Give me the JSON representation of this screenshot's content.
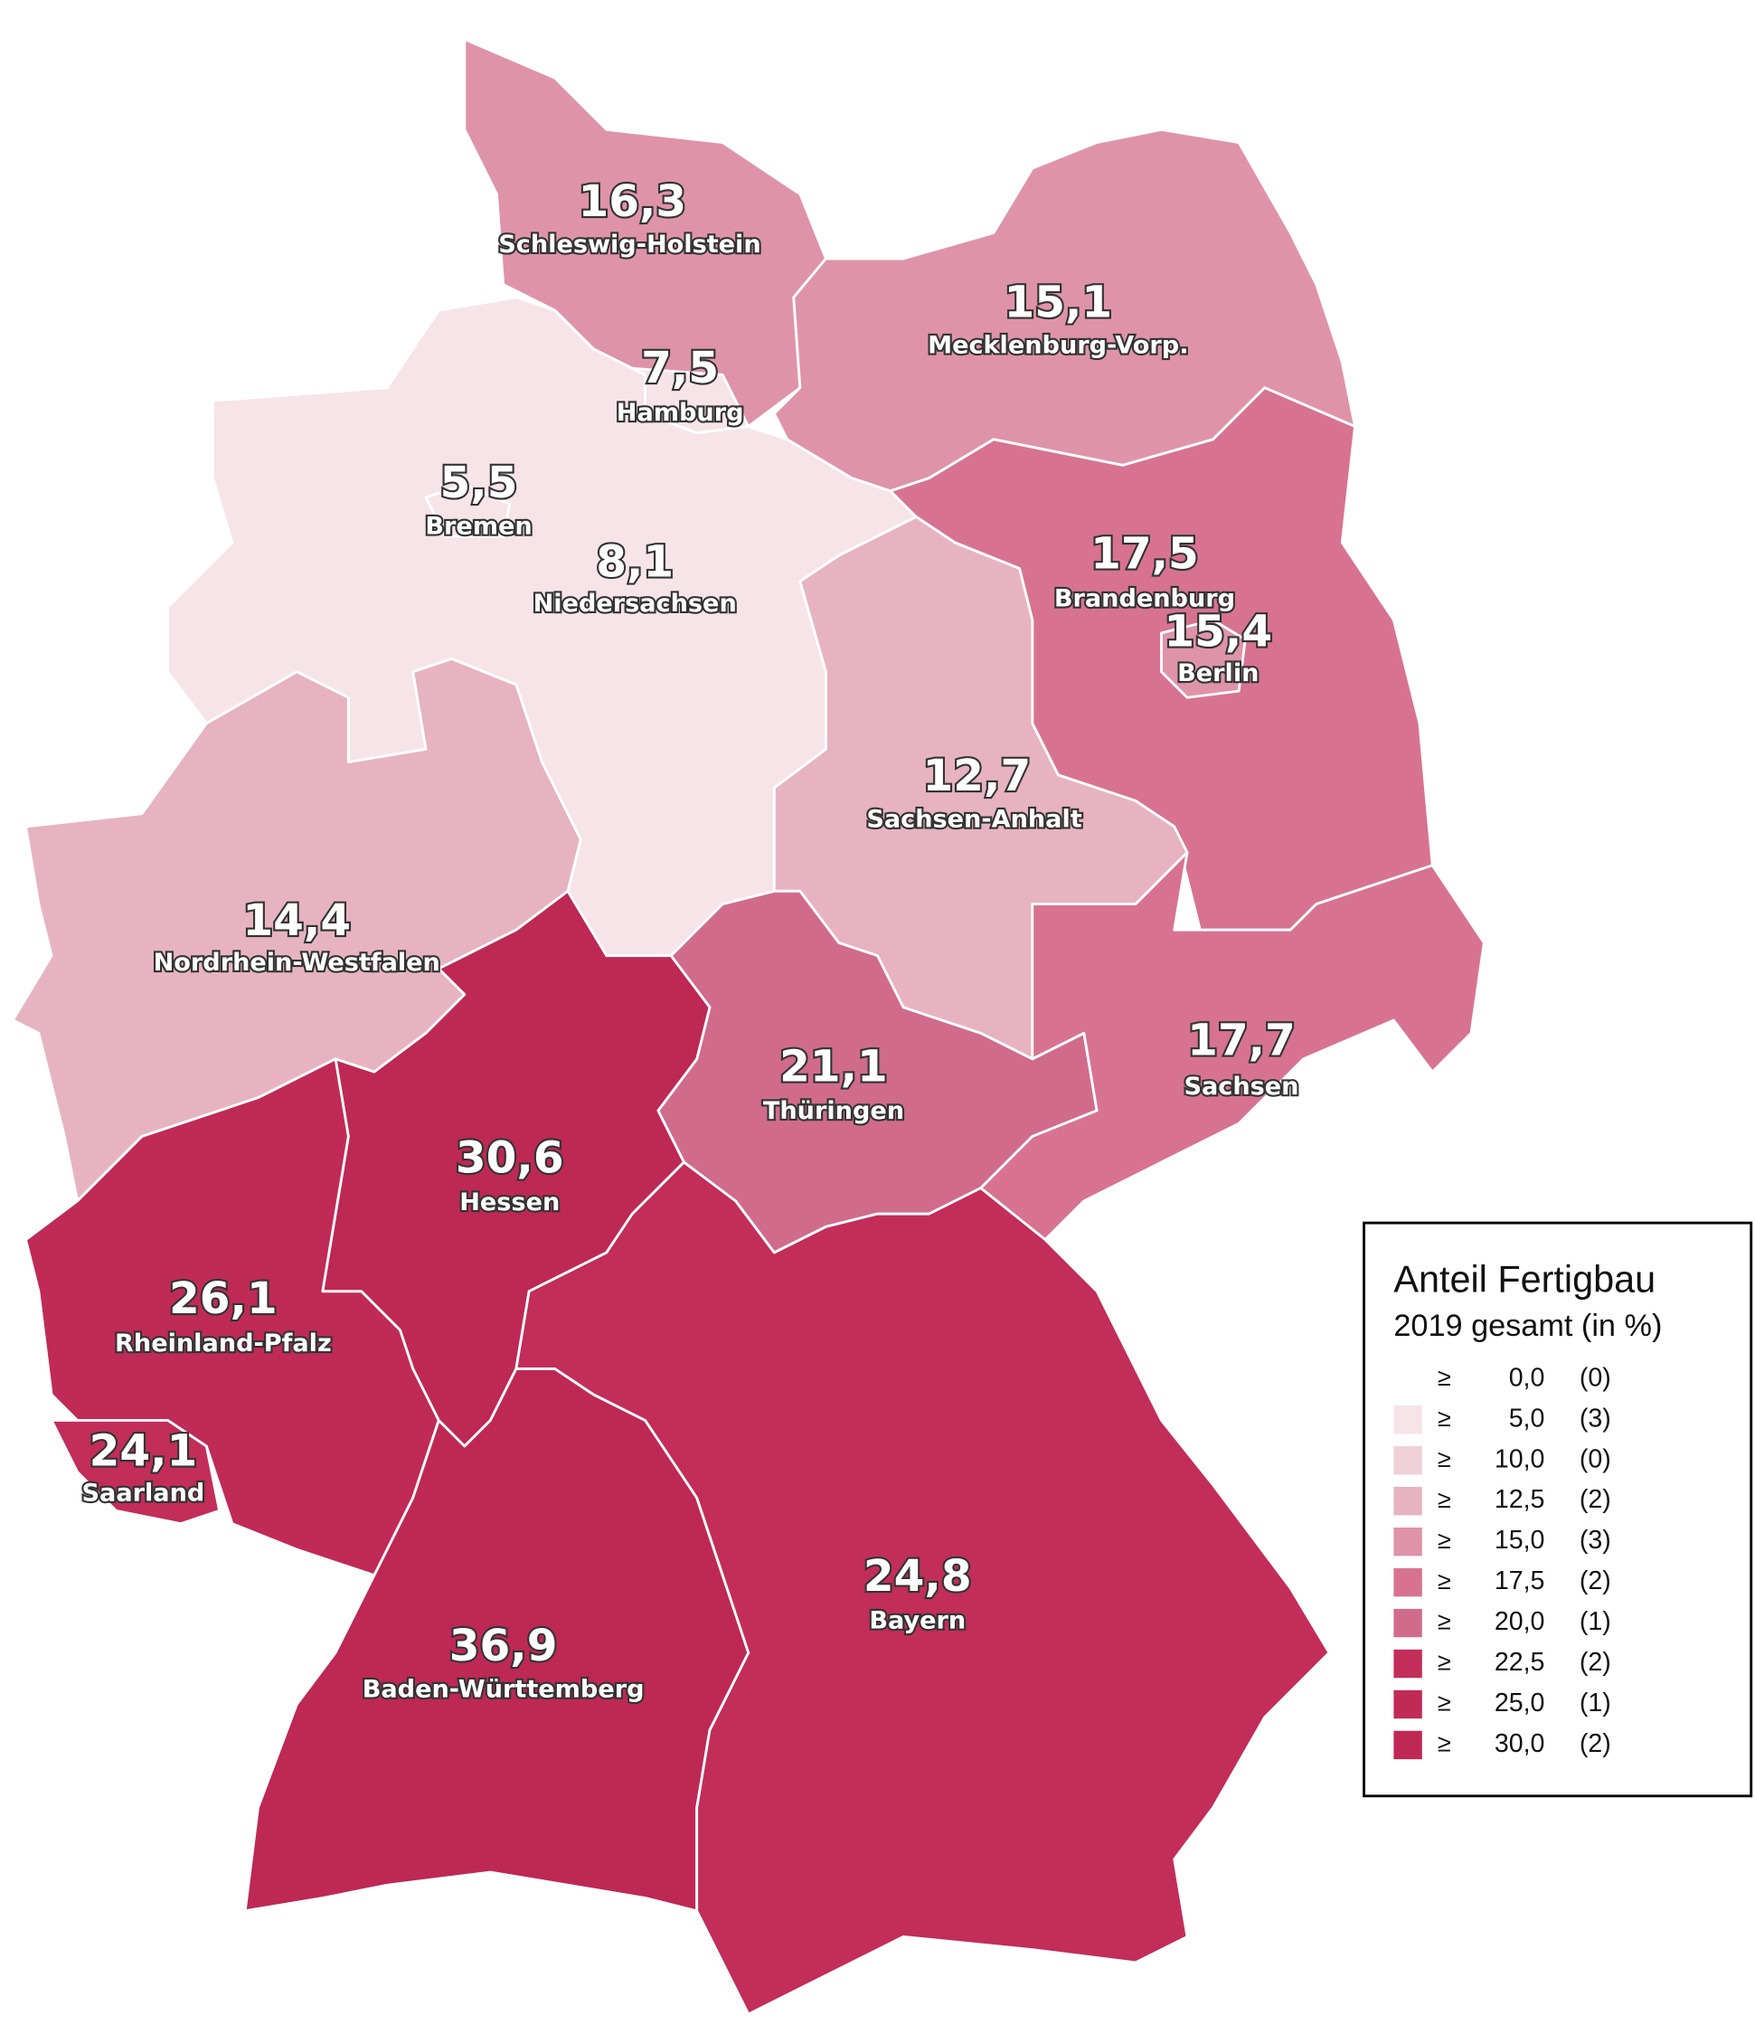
{
  "chart_data": {
    "type": "choropleth",
    "categories": [
      "Schleswig-Holstein",
      "Hamburg",
      "Mecklenburg-Vorp.",
      "Niedersachsen",
      "Bremen",
      "Brandenburg",
      "Berlin",
      "Sachsen-Anhalt",
      "Nordrhein-Westfalen",
      "Thüringen",
      "Sachsen",
      "Hessen",
      "Rheinland-Pfalz",
      "Saarland",
      "Baden-Württemberg",
      "Bayern"
    ],
    "values": [
      16.3,
      7.5,
      15.1,
      8.1,
      5.5,
      17.5,
      15.4,
      12.7,
      14.4,
      21.1,
      17.7,
      30.6,
      26.1,
      24.1,
      36.9,
      24.8
    ],
    "value_labels": [
      "16,3",
      "7,5",
      "15,1",
      "8,1",
      "5,5",
      "17,5",
      "15,4",
      "12,7",
      "14,4",
      "21,1",
      "17,7",
      "30,6",
      "26,1",
      "24,1",
      "36,9",
      "24,8"
    ],
    "legend": {
      "title": "Anteil Fertigbau",
      "subtitle": "2019 gesamt (in %)",
      "symbol": "≥",
      "bins": [
        {
          "value": 0,
          "label": "0,0",
          "count": {
            "value": 0,
            "label": "(0)"
          },
          "color": "#ffffff"
        },
        {
          "value": 5,
          "label": "5,0",
          "count": {
            "value": 3,
            "label": "(3)"
          },
          "color": "#f6e4e9"
        },
        {
          "value": 10,
          "label": "10,0",
          "count": {
            "value": 0,
            "label": "(0)"
          },
          "color": "#efd0d9"
        },
        {
          "value": 12.5,
          "label": "12,5",
          "count": {
            "value": 2,
            "label": "(2)"
          },
          "color": "#e7b3c1"
        },
        {
          "value": 15,
          "label": "15,0",
          "count": {
            "value": 3,
            "label": "(3)"
          },
          "color": "#df93a9"
        },
        {
          "value": 17.5,
          "label": "17,5",
          "count": {
            "value": 2,
            "label": "(2)"
          },
          "color": "#d77391"
        },
        {
          "value": 20,
          "label": "20,0",
          "count": {
            "value": 1,
            "label": "(1)"
          },
          "color": "#d16b8c"
        },
        {
          "value": 22.5,
          "label": "22,5",
          "count": {
            "value": 2,
            "label": "(2)"
          },
          "color": "#c22d59"
        },
        {
          "value": 25,
          "label": "25,0",
          "count": {
            "value": 1,
            "label": "(1)"
          },
          "color": "#c02a56"
        },
        {
          "value": 30,
          "label": "30,0",
          "count": {
            "value": 2,
            "label": "(2)"
          },
          "color": "#be2854"
        }
      ]
    }
  }
}
